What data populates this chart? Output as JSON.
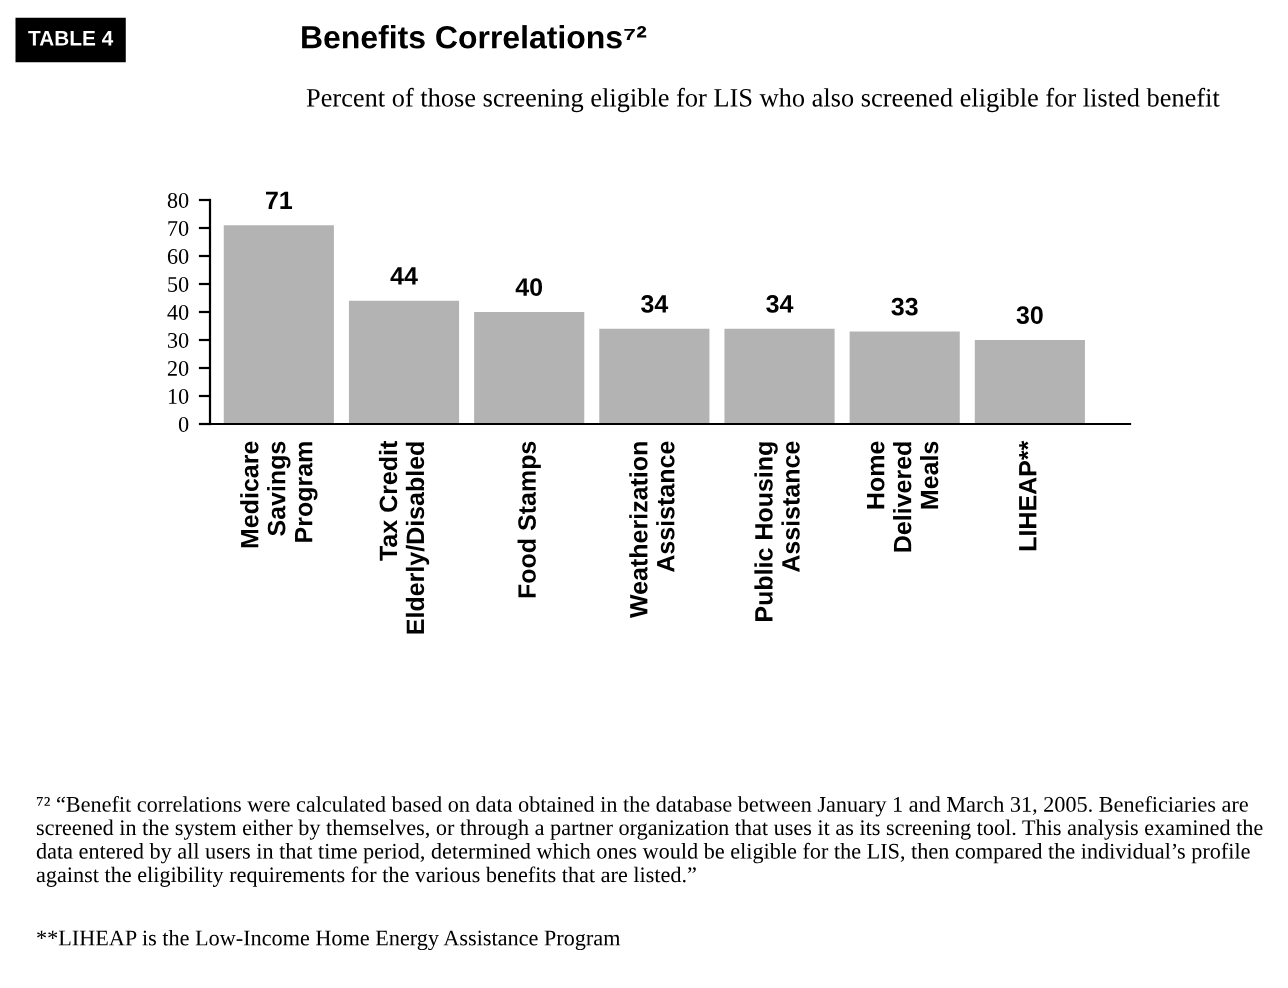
{
  "chart_data": {
    "type": "bar",
    "title": "Benefits Correlations⁷²",
    "subtitle": "Percent of those screening eligible for LIS who also screened eligible for listed benefit",
    "categories": [
      "Medicare\nSavings\nProgram",
      "Tax Credit\nElderly/Disabled",
      "Food Stamps",
      "Weatherization\nAssistance",
      "Public Housing\nAssistance",
      "Home\nDelivered\nMeals",
      "LIHEAP**"
    ],
    "values": [
      71,
      44,
      40,
      34,
      34,
      33,
      30
    ],
    "color": "#b3b3b3",
    "ylim": [
      0,
      80
    ],
    "yticks": [
      0,
      10,
      20,
      30,
      40,
      50,
      60,
      70,
      80
    ],
    "grid": false,
    "data_labels": true,
    "annotations": [
      "TABLE 4",
      "⁷² “Benefit correlations were calculated based on data obtained in the database between January 1 and March 31, 2005. Beneficiaries are screened in the system either by themselves, or through a partner organization that uses it as its screening tool. This analysis examined the data entered by all users in that time period, determined which ones would be eligible for the LIS, then compared the individual’s profile against the eligibility requirements for the various benefits that are listed.”",
      "**LIHEAP is the Low-Income Home Energy Assistance Program"
    ]
  }
}
